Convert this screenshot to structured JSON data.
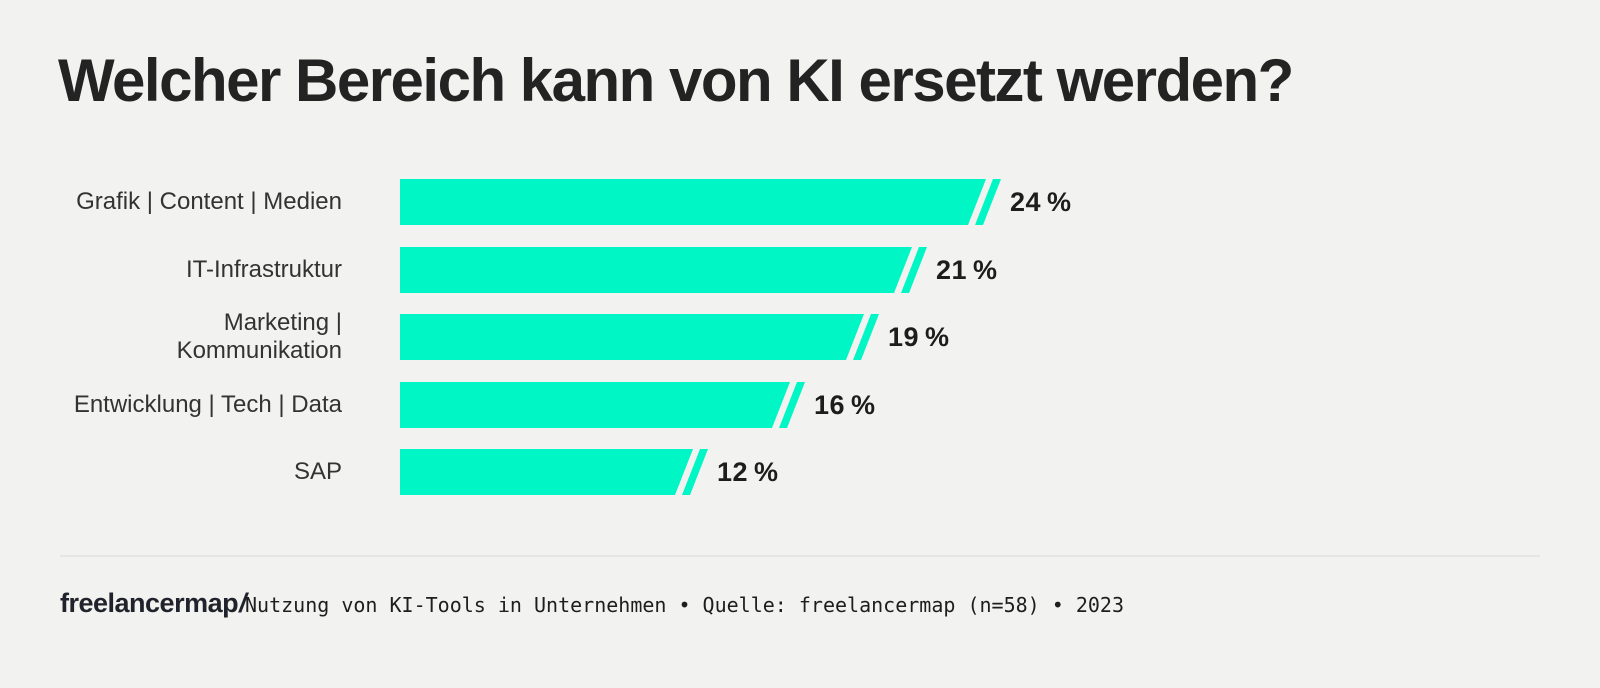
{
  "title": "Welcher Bereich kann von KI ersetzt werden?",
  "chart_data": {
    "type": "bar",
    "orientation": "horizontal",
    "title": "Welcher Bereich kann von KI ersetzt werden?",
    "categories": [
      "Grafik | Content | Medien",
      "IT-Infrastruktur",
      "Marketing | Kommunikation",
      "Entwicklung | Tech | Data",
      "SAP"
    ],
    "categories_lines": [
      [
        "Grafik | Content | Medien"
      ],
      [
        "IT-Infrastruktur"
      ],
      [
        "Marketing |",
        "Kommunikation"
      ],
      [
        "Entwicklung | Tech | Data"
      ],
      [
        "SAP"
      ]
    ],
    "values": [
      24,
      21,
      19,
      16,
      12
    ],
    "value_labels": [
      "24 %",
      "21 %",
      "19 %",
      "16 %",
      "12 %"
    ],
    "unit": "%",
    "xlabel": "",
    "ylabel": "",
    "grid": false,
    "legend": false,
    "bar_color": "#00F7C5",
    "background_color": "#F2F2F0"
  },
  "footer": {
    "logo_text": "freelancermap",
    "logo_slash": "/",
    "source_text": "Nutzung von KI-Tools in Unternehmen • Quelle: freelancermap (n=58) • 2023"
  },
  "colors": {
    "background": "#F2F2F0",
    "bar": "#00F7C5",
    "title_text": "#232323",
    "category_text": "#333333",
    "value_text": "#1d1d1d",
    "divider": "#E6E5E2",
    "logo_text": "#20232B",
    "logo_slash": "#00E9BD"
  }
}
